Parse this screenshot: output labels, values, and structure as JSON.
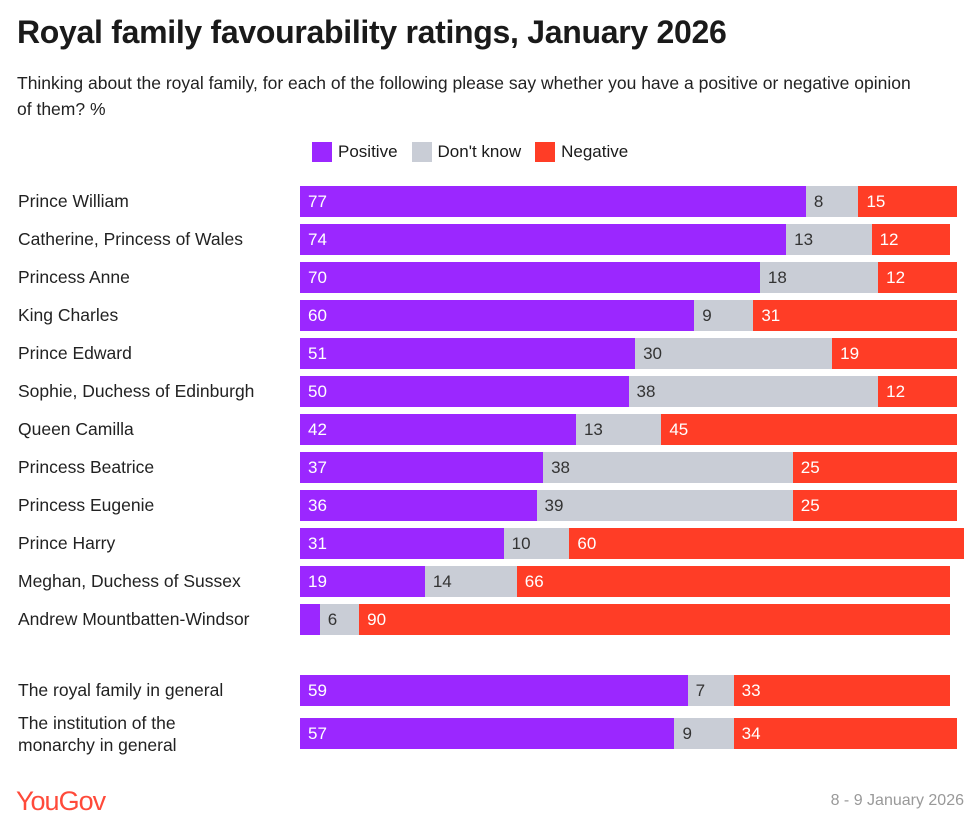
{
  "chart_data": {
    "type": "bar",
    "orientation": "horizontal",
    "stacked": true,
    "title": "Royal family favourability ratings, January 2026",
    "subtitle": "Thinking about the royal family, for each of the following please say whether you have a positive or negative opinion of them? %",
    "legend_position": "top",
    "grid": false,
    "xlim": [
      0,
      100
    ],
    "colors": {
      "Positive": "#9b27ff",
      "Don't know": "#c9cdd6",
      "Negative": "#ff3d26"
    },
    "categories": [
      "Prince William",
      "Catherine, Princess of Wales",
      "Princess Anne",
      "King Charles",
      "Prince Edward",
      "Sophie, Duchess of Edinburgh",
      "Queen Camilla",
      "Princess Beatrice",
      "Princess Eugenie",
      "Prince Harry",
      "Meghan, Duchess of Sussex",
      "Andrew Mountbatten-Windsor",
      "The royal family in general",
      "The institution of the monarchy in general"
    ],
    "series": [
      {
        "name": "Positive",
        "values": [
          77,
          74,
          70,
          60,
          51,
          50,
          42,
          37,
          36,
          31,
          19,
          3,
          59,
          57
        ]
      },
      {
        "name": "Don't know",
        "values": [
          8,
          13,
          18,
          9,
          30,
          38,
          13,
          38,
          39,
          10,
          14,
          6,
          7,
          9
        ]
      },
      {
        "name": "Negative",
        "values": [
          15,
          12,
          12,
          31,
          19,
          12,
          45,
          25,
          25,
          60,
          66,
          90,
          33,
          34
        ]
      }
    ]
  },
  "footer": {
    "brand": "YouGov",
    "date": "8 - 9 January 2026"
  }
}
